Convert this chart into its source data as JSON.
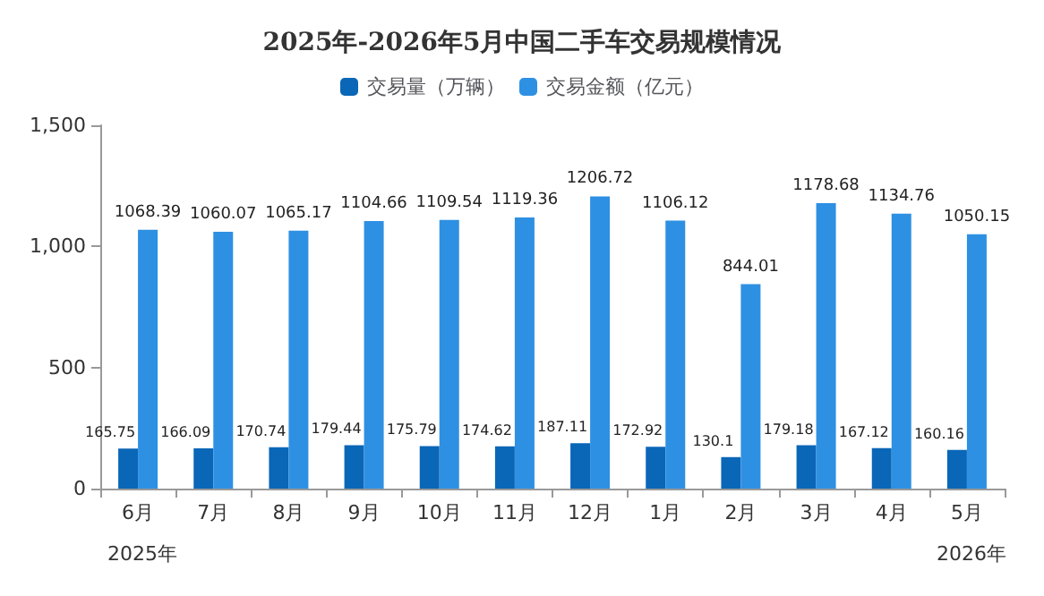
{
  "chart_data": {
    "type": "bar",
    "title": "2025年-2026年5月中国二手车交易规模情况",
    "categories": [
      "6月",
      "7月",
      "8月",
      "9月",
      "10月",
      "11月",
      "12月",
      "1月",
      "2月",
      "3月",
      "4月",
      "5月"
    ],
    "series": [
      {
        "name": "交易量（万辆）",
        "color": "#0a66b7",
        "values": [
          165.75,
          166.09,
          170.74,
          179.44,
          175.79,
          174.62,
          187.11,
          172.92,
          130.1,
          179.18,
          167.12,
          160.16
        ]
      },
      {
        "name": "交易金额（亿元）",
        "color": "#2e90e3",
        "values": [
          1068.39,
          1060.07,
          1065.17,
          1104.66,
          1109.54,
          1119.36,
          1206.72,
          1106.12,
          844.01,
          1178.68,
          1134.76,
          1050.15
        ]
      }
    ],
    "ylim": [
      0,
      1500
    ],
    "yticks": [
      0,
      500,
      {
        "value": 1000,
        "label": "1,000"
      },
      {
        "value": 1500,
        "label": "1,500"
      }
    ],
    "grid": false,
    "legend": "top",
    "data_labels": true,
    "annotations": [
      "2025年",
      "2026年"
    ]
  }
}
